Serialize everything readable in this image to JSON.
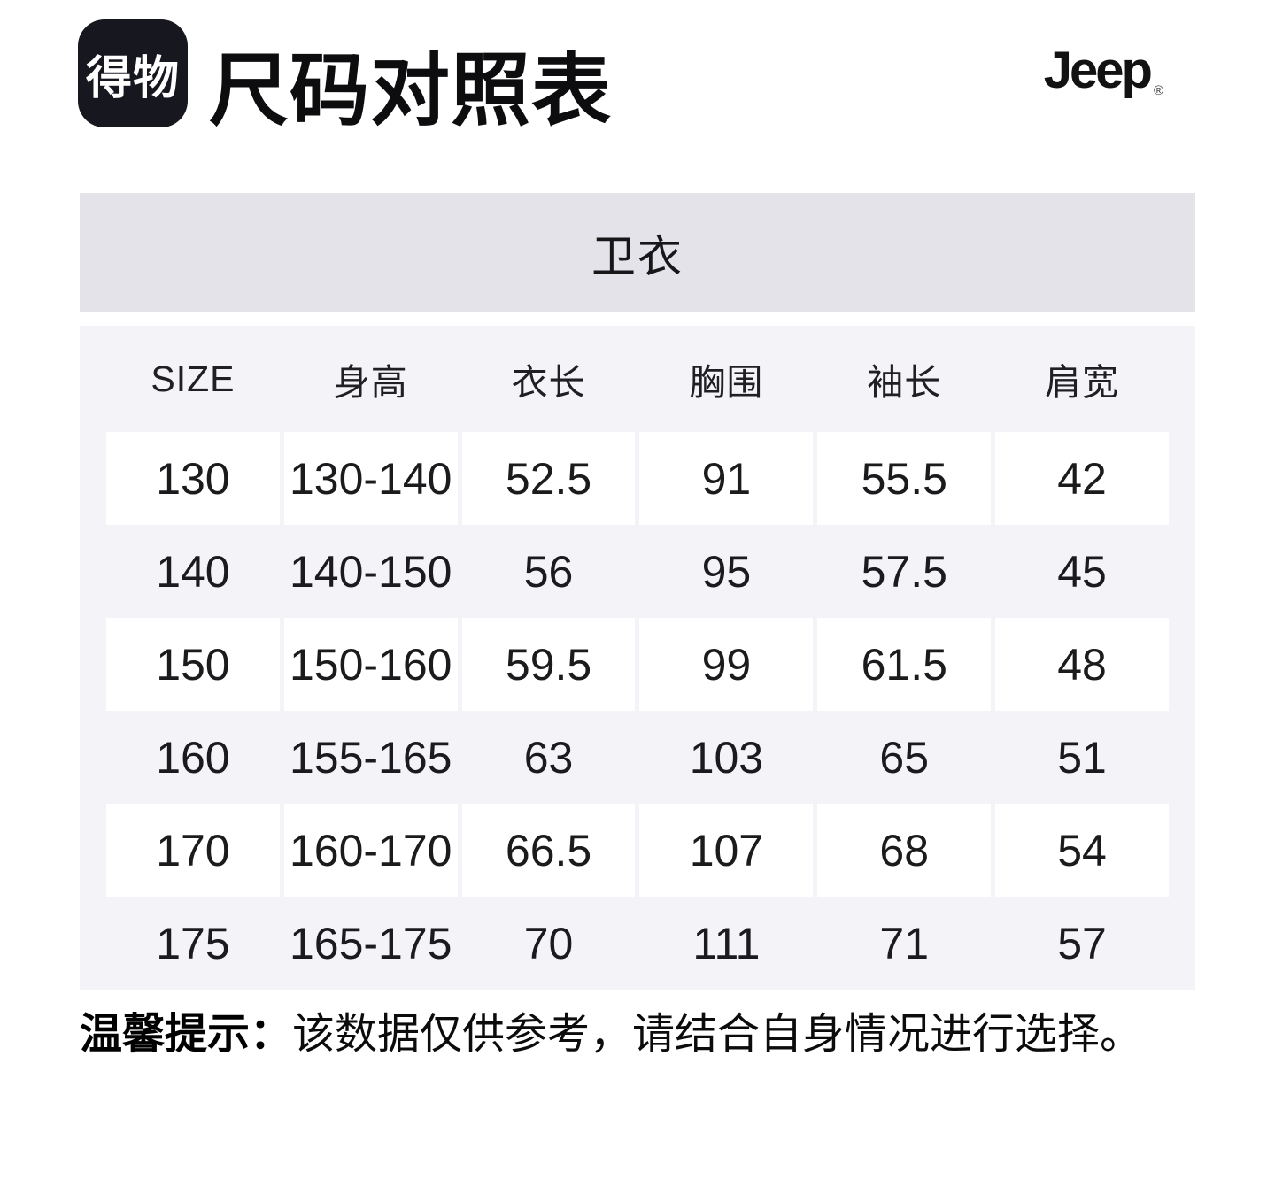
{
  "header": {
    "app_logo_text": "得物",
    "title": "尺码对照表",
    "brand": "Jeep",
    "brand_reg_mark": "®"
  },
  "table": {
    "category": "卫衣",
    "columns": [
      "SIZE",
      "身高",
      "衣长",
      "胸围",
      "袖长",
      "肩宽"
    ],
    "rows": [
      [
        "130",
        "130-140",
        "52.5",
        "91",
        "55.5",
        "42"
      ],
      [
        "140",
        "140-150",
        "56",
        "95",
        "57.5",
        "45"
      ],
      [
        "150",
        "150-160",
        "59.5",
        "99",
        "61.5",
        "48"
      ],
      [
        "160",
        "155-165",
        "63",
        "103",
        "65",
        "51"
      ],
      [
        "170",
        "160-170",
        "66.5",
        "107",
        "68",
        "54"
      ],
      [
        "175",
        "165-175",
        "70",
        "111",
        "71",
        "57"
      ]
    ]
  },
  "note": {
    "label": "温馨提示：",
    "text": "该数据仅供参考，请结合自身情况进行选择。"
  },
  "colors": {
    "band_bg": "#e4e3e9",
    "table_bg": "#f4f3f8",
    "white_cell_bg": "#ffffff",
    "logo_bg": "#17171f",
    "text": "#1b1b1d"
  }
}
